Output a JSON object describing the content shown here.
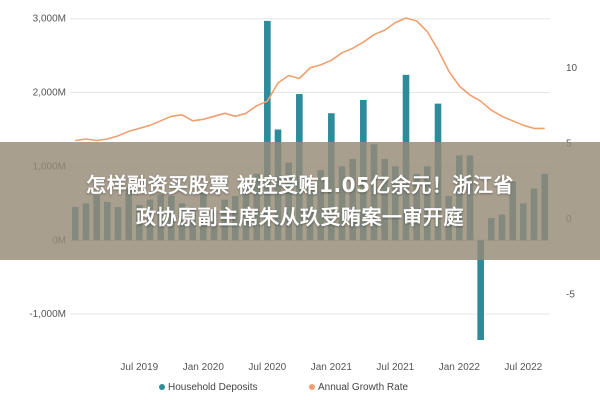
{
  "chart_data": {
    "type": "bar",
    "title": "",
    "xlabel": "",
    "ylabel": "",
    "left_axis": {
      "ticks": [
        -1000,
        0,
        1000,
        2000,
        3000
      ],
      "tick_labels": [
        "-1,000M",
        "0M",
        "1,000M",
        "2,000M",
        "3,000M"
      ],
      "ylim": [
        -1350,
        3050
      ]
    },
    "right_axis": {
      "ticks": [
        -5,
        0,
        5,
        10
      ],
      "tick_labels": [
        "-5",
        "0",
        "5",
        "10"
      ],
      "ylim": [
        -8.0,
        13.5
      ]
    },
    "x_tick_labels": [
      "Jul 2019",
      "Jan 2020",
      "Jul 2020",
      "Jan 2021",
      "Jul 2021",
      "Jan 2022",
      "Jul 2022"
    ],
    "x": [
      "Jan 2019",
      "Feb 2019",
      "Mar 2019",
      "Apr 2019",
      "May 2019",
      "Jun 2019",
      "Jul 2019",
      "Aug 2019",
      "Sep 2019",
      "Oct 2019",
      "Nov 2019",
      "Dec 2019",
      "Jan 2020",
      "Feb 2020",
      "Mar 2020",
      "Apr 2020",
      "May 2020",
      "Jun 2020",
      "Jul 2020",
      "Aug 2020",
      "Sep 2020",
      "Oct 2020",
      "Nov 2020",
      "Dec 2020",
      "Jan 2021",
      "Feb 2021",
      "Mar 2021",
      "Apr 2021",
      "May 2021",
      "Jun 2021",
      "Jul 2021",
      "Aug 2021",
      "Sep 2021",
      "Oct 2021",
      "Nov 2021",
      "Dec 2021",
      "Jan 2022",
      "Feb 2022",
      "Mar 2022",
      "Apr 2022",
      "May 2022",
      "Jun 2022",
      "Jul 2022",
      "Aug 2022",
      "Sep 2022"
    ],
    "series": [
      {
        "name": "Household Deposits",
        "axis": "left",
        "type": "bar",
        "color": "#2e8b9a",
        "values": [
          450,
          500,
          600,
          520,
          450,
          700,
          480,
          550,
          620,
          600,
          500,
          450,
          650,
          400,
          550,
          600,
          700,
          900,
          2970,
          1500,
          1050,
          1980,
          800,
          950,
          1720,
          1000,
          1100,
          1900,
          1300,
          1100,
          1000,
          2240,
          900,
          1000,
          1850,
          600,
          1150,
          1150,
          -1350,
          300,
          350,
          800,
          500,
          700,
          900
        ]
      },
      {
        "name": "Annual Growth Rate",
        "axis": "right",
        "type": "line",
        "color": "#f0a070",
        "values": [
          5.2,
          5.3,
          5.2,
          5.3,
          5.5,
          5.8,
          6.0,
          6.2,
          6.5,
          6.8,
          6.9,
          6.5,
          6.6,
          6.8,
          7.0,
          6.8,
          7.0,
          7.5,
          7.8,
          9.0,
          9.5,
          9.3,
          10.0,
          10.2,
          10.5,
          11.0,
          11.3,
          11.7,
          12.2,
          12.5,
          13.0,
          13.3,
          13.1,
          12.4,
          11.2,
          9.8,
          8.8,
          8.2,
          7.8,
          7.2,
          6.8,
          6.5,
          6.2,
          6.0,
          6.0
        ]
      }
    ],
    "legend": {
      "position": "bottom",
      "entries": [
        "Household Deposits",
        "Annual Growth Rate"
      ]
    }
  },
  "overlay": {
    "line1": "怎样融资买股票 被控受贿1.05亿余元！浙江省",
    "line2": "政协原副主席朱从玖受贿案一审开庭"
  }
}
